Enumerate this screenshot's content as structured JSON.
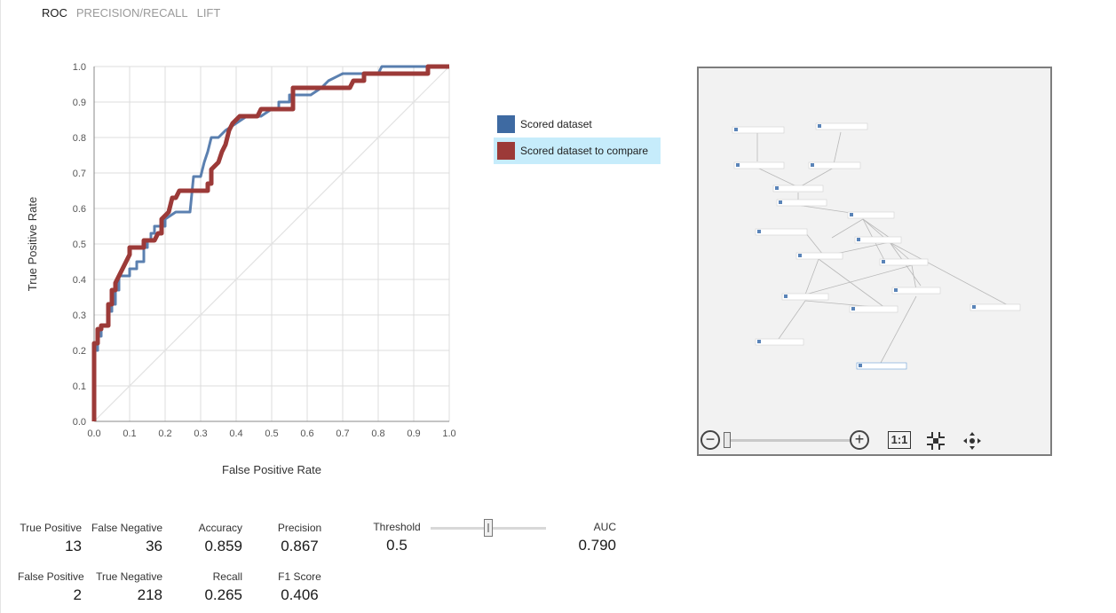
{
  "tabs": [
    {
      "label": "ROC",
      "active": true
    },
    {
      "label": "PRECISION/RECALL",
      "active": false
    },
    {
      "label": "LIFT",
      "active": false
    }
  ],
  "chart_data": {
    "type": "line",
    "xlabel": "False Positive Rate",
    "ylabel": "True Positive Rate",
    "xlim": [
      0,
      1
    ],
    "ylim": [
      0,
      1
    ],
    "xticks": [
      "0.0",
      "0.1",
      "0.2",
      "0.3",
      "0.4",
      "0.5",
      "0.6",
      "0.7",
      "0.8",
      "0.9",
      "1.0"
    ],
    "yticks": [
      "0.0",
      "0.1",
      "0.2",
      "0.3",
      "0.4",
      "0.5",
      "0.6",
      "0.7",
      "0.8",
      "0.9",
      "1.0"
    ],
    "grid": true,
    "legend_position": "right",
    "series": [
      {
        "name": "Scored dataset",
        "color": "#3e6aa2",
        "points": [
          [
            0,
            0
          ],
          [
            0,
            0.2
          ],
          [
            0.01,
            0.2
          ],
          [
            0.01,
            0.24
          ],
          [
            0.02,
            0.24
          ],
          [
            0.02,
            0.27
          ],
          [
            0.04,
            0.27
          ],
          [
            0.04,
            0.31
          ],
          [
            0.05,
            0.31
          ],
          [
            0.05,
            0.33
          ],
          [
            0.06,
            0.33
          ],
          [
            0.06,
            0.37
          ],
          [
            0.07,
            0.37
          ],
          [
            0.07,
            0.41
          ],
          [
            0.1,
            0.41
          ],
          [
            0.1,
            0.43
          ],
          [
            0.12,
            0.43
          ],
          [
            0.12,
            0.45
          ],
          [
            0.14,
            0.45
          ],
          [
            0.14,
            0.49
          ],
          [
            0.15,
            0.49
          ],
          [
            0.15,
            0.51
          ],
          [
            0.16,
            0.51
          ],
          [
            0.16,
            0.53
          ],
          [
            0.17,
            0.53
          ],
          [
            0.17,
            0.55
          ],
          [
            0.2,
            0.55
          ],
          [
            0.2,
            0.57
          ],
          [
            0.23,
            0.59
          ],
          [
            0.27,
            0.59
          ],
          [
            0.28,
            0.69
          ],
          [
            0.3,
            0.69
          ],
          [
            0.31,
            0.73
          ],
          [
            0.32,
            0.76
          ],
          [
            0.33,
            0.8
          ],
          [
            0.35,
            0.8
          ],
          [
            0.37,
            0.82
          ],
          [
            0.4,
            0.84
          ],
          [
            0.43,
            0.86
          ],
          [
            0.47,
            0.86
          ],
          [
            0.5,
            0.88
          ],
          [
            0.52,
            0.88
          ],
          [
            0.52,
            0.9
          ],
          [
            0.55,
            0.9
          ],
          [
            0.55,
            0.92
          ],
          [
            0.61,
            0.92
          ],
          [
            0.64,
            0.94
          ],
          [
            0.66,
            0.96
          ],
          [
            0.7,
            0.98
          ],
          [
            0.8,
            0.98
          ],
          [
            0.81,
            1
          ],
          [
            1,
            1
          ]
        ]
      },
      {
        "name": "Scored dataset to compare",
        "color": "#9c3a38",
        "points": [
          [
            0,
            0
          ],
          [
            0,
            0.22
          ],
          [
            0.01,
            0.22
          ],
          [
            0.01,
            0.26
          ],
          [
            0.02,
            0.26
          ],
          [
            0.02,
            0.27
          ],
          [
            0.04,
            0.27
          ],
          [
            0.04,
            0.31
          ],
          [
            0.04,
            0.33
          ],
          [
            0.05,
            0.33
          ],
          [
            0.05,
            0.37
          ],
          [
            0.06,
            0.37
          ],
          [
            0.06,
            0.39
          ],
          [
            0.07,
            0.41
          ],
          [
            0.08,
            0.43
          ],
          [
            0.09,
            0.45
          ],
          [
            0.1,
            0.47
          ],
          [
            0.1,
            0.49
          ],
          [
            0.14,
            0.49
          ],
          [
            0.14,
            0.51
          ],
          [
            0.17,
            0.51
          ],
          [
            0.18,
            0.53
          ],
          [
            0.19,
            0.53
          ],
          [
            0.19,
            0.57
          ],
          [
            0.21,
            0.59
          ],
          [
            0.22,
            0.63
          ],
          [
            0.23,
            0.63
          ],
          [
            0.24,
            0.65
          ],
          [
            0.32,
            0.65
          ],
          [
            0.32,
            0.67
          ],
          [
            0.33,
            0.67
          ],
          [
            0.33,
            0.71
          ],
          [
            0.35,
            0.73
          ],
          [
            0.36,
            0.76
          ],
          [
            0.37,
            0.78
          ],
          [
            0.38,
            0.82
          ],
          [
            0.39,
            0.84
          ],
          [
            0.41,
            0.86
          ],
          [
            0.46,
            0.86
          ],
          [
            0.47,
            0.88
          ],
          [
            0.56,
            0.88
          ],
          [
            0.56,
            0.94
          ],
          [
            0.72,
            0.94
          ],
          [
            0.73,
            0.96
          ],
          [
            0.76,
            0.96
          ],
          [
            0.76,
            0.98
          ],
          [
            0.94,
            0.98
          ],
          [
            0.94,
            1
          ],
          [
            1,
            1
          ]
        ]
      }
    ],
    "diagonal_color": "#e2e2e2"
  },
  "metrics": {
    "true_positive": {
      "label": "True Positive",
      "value": "13"
    },
    "false_negative": {
      "label": "False Negative",
      "value": "36"
    },
    "false_positive": {
      "label": "False Positive",
      "value": "2"
    },
    "true_negative": {
      "label": "True Negative",
      "value": "218"
    },
    "accuracy": {
      "label": "Accuracy",
      "value": "0.859"
    },
    "recall": {
      "label": "Recall",
      "value": "0.265"
    },
    "precision": {
      "label": "Precision",
      "value": "0.867"
    },
    "f1": {
      "label": "F1 Score",
      "value": "0.406"
    },
    "threshold": {
      "label": "Threshold",
      "value": "0.5",
      "slider_fraction": 0.5
    },
    "auc": {
      "label": "AUC",
      "value": "0.790"
    }
  },
  "canvas": {
    "zoom_fit_label": "1:1"
  }
}
